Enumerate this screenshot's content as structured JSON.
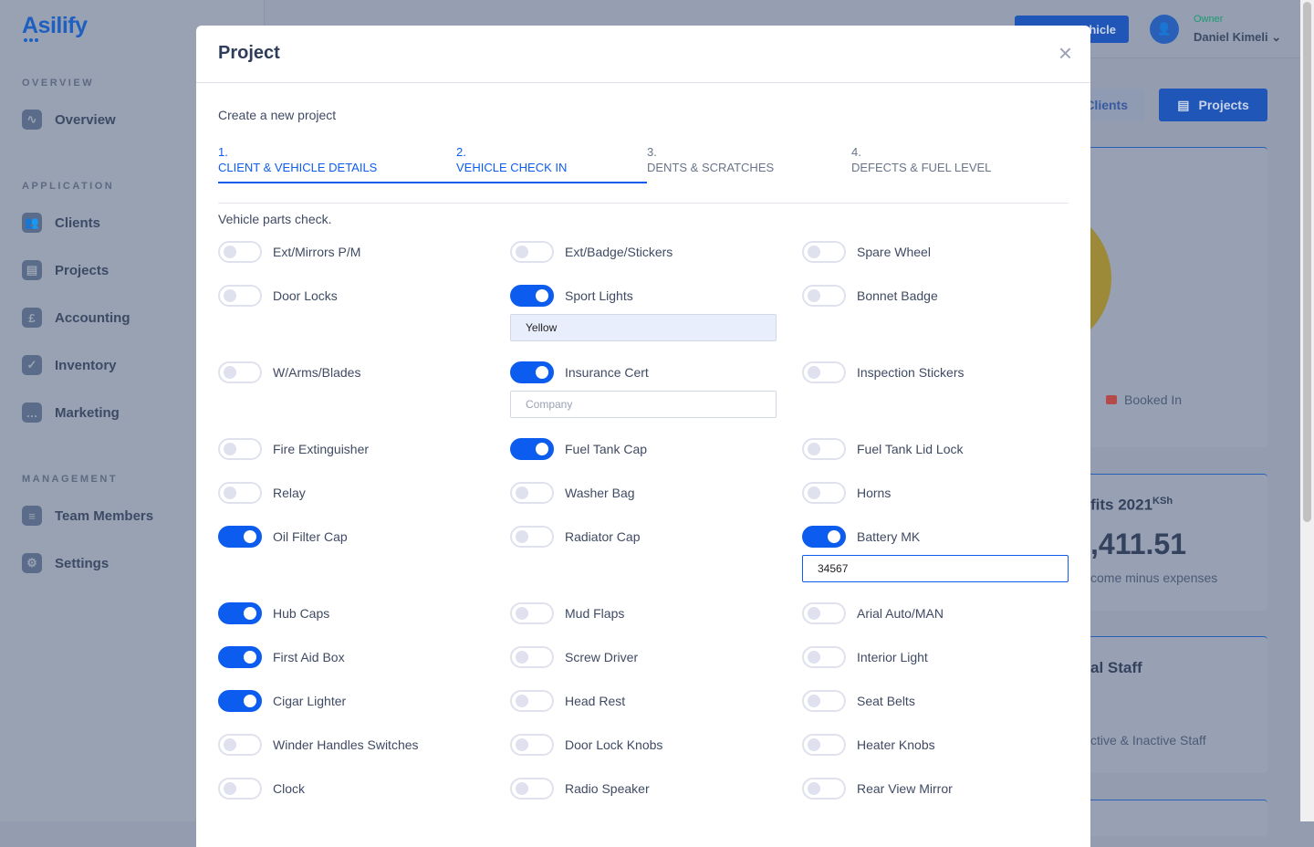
{
  "app": {
    "logo": "Asilify"
  },
  "sidebar": {
    "sections": [
      {
        "title": "OVERVIEW",
        "items": [
          {
            "label": "Overview",
            "icon": "activity-icon"
          }
        ]
      },
      {
        "title": "APPLICATION",
        "items": [
          {
            "label": "Clients",
            "icon": "users-icon"
          },
          {
            "label": "Projects",
            "icon": "clipboard-icon"
          },
          {
            "label": "Accounting",
            "icon": "pound-icon"
          },
          {
            "label": "Inventory",
            "icon": "clipboard-check-icon"
          },
          {
            "label": "Marketing",
            "icon": "chat-icon"
          }
        ]
      },
      {
        "title": "MANAGEMENT",
        "items": [
          {
            "label": "Team Members",
            "icon": "team-icon"
          },
          {
            "label": "Settings",
            "icon": "gear-icon"
          }
        ]
      }
    ]
  },
  "header": {
    "new_vehicle": "+ New Vehicle",
    "role": "Owner",
    "user": "Daniel Kimeli"
  },
  "page": {
    "clients_btn": "Clients",
    "projects_btn": "Projects",
    "legend_booked": "Booked In",
    "profits_title": "fits 2021",
    "profits_unit": "KSh",
    "profits_value": ",411.51",
    "profits_sub": "come minus expenses",
    "staff_title": "al Staff",
    "staff_sub": "ctive & Inactive Staff",
    "colors": {
      "booked": "#b54a4a",
      "pie": "#9c8a38"
    }
  },
  "modal": {
    "title": "Project",
    "close": "×",
    "subtitle": "Create a new project",
    "steps": [
      {
        "num": "1.",
        "label": "CLIENT & VEHICLE DETAILS",
        "active": true
      },
      {
        "num": "2.",
        "label": "VEHICLE CHECK IN",
        "active": true
      },
      {
        "num": "3.",
        "label": "DENTS & SCRATCHES",
        "active": false
      },
      {
        "num": "4.",
        "label": "DEFECTS & FUEL LEVEL",
        "active": false
      }
    ],
    "section": "Vehicle parts check.",
    "rows": [
      [
        {
          "label": "Ext/Mirrors P/M",
          "on": false
        },
        {
          "label": "Ext/Badge/Stickers",
          "on": false
        },
        {
          "label": "Spare Wheel",
          "on": false
        }
      ],
      [
        {
          "label": "Door Locks",
          "on": false
        },
        {
          "label": "Sport Lights",
          "on": true,
          "input": {
            "value": "Yellow",
            "placeholder": ""
          }
        },
        {
          "label": "Bonnet Badge",
          "on": false
        }
      ],
      [
        {
          "label": "W/Arms/Blades",
          "on": false
        },
        {
          "label": "Insurance Cert",
          "on": true,
          "input": {
            "value": "",
            "placeholder": "Company"
          }
        },
        {
          "label": "Inspection Stickers",
          "on": false
        }
      ],
      [
        {
          "label": "Fire Extinguisher",
          "on": false
        },
        {
          "label": "Fuel Tank Cap",
          "on": true
        },
        {
          "label": "Fuel Tank Lid Lock",
          "on": false
        }
      ],
      [
        {
          "label": "Relay",
          "on": false
        },
        {
          "label": "Washer Bag",
          "on": false
        },
        {
          "label": "Horns",
          "on": false
        }
      ],
      [
        {
          "label": "Oil Filter Cap",
          "on": true
        },
        {
          "label": "Radiator Cap",
          "on": false
        },
        {
          "label": "Battery MK",
          "on": true,
          "input": {
            "value": "34567",
            "placeholder": ""
          }
        }
      ],
      [
        {
          "label": "Hub Caps",
          "on": true
        },
        {
          "label": "Mud Flaps",
          "on": false
        },
        {
          "label": "Arial Auto/MAN",
          "on": false
        }
      ],
      [
        {
          "label": "First Aid Box",
          "on": true
        },
        {
          "label": "Screw Driver",
          "on": false
        },
        {
          "label": "Interior Light",
          "on": false
        }
      ],
      [
        {
          "label": "Cigar Lighter",
          "on": true
        },
        {
          "label": "Head Rest",
          "on": false
        },
        {
          "label": "Seat Belts",
          "on": false
        }
      ],
      [
        {
          "label": "Winder Handles Switches",
          "on": false
        },
        {
          "label": "Door Lock Knobs",
          "on": false
        },
        {
          "label": "Heater Knobs",
          "on": false
        }
      ],
      [
        {
          "label": "Clock",
          "on": false
        },
        {
          "label": "Radio Speaker",
          "on": false
        },
        {
          "label": "Rear View Mirror",
          "on": false
        }
      ]
    ]
  }
}
